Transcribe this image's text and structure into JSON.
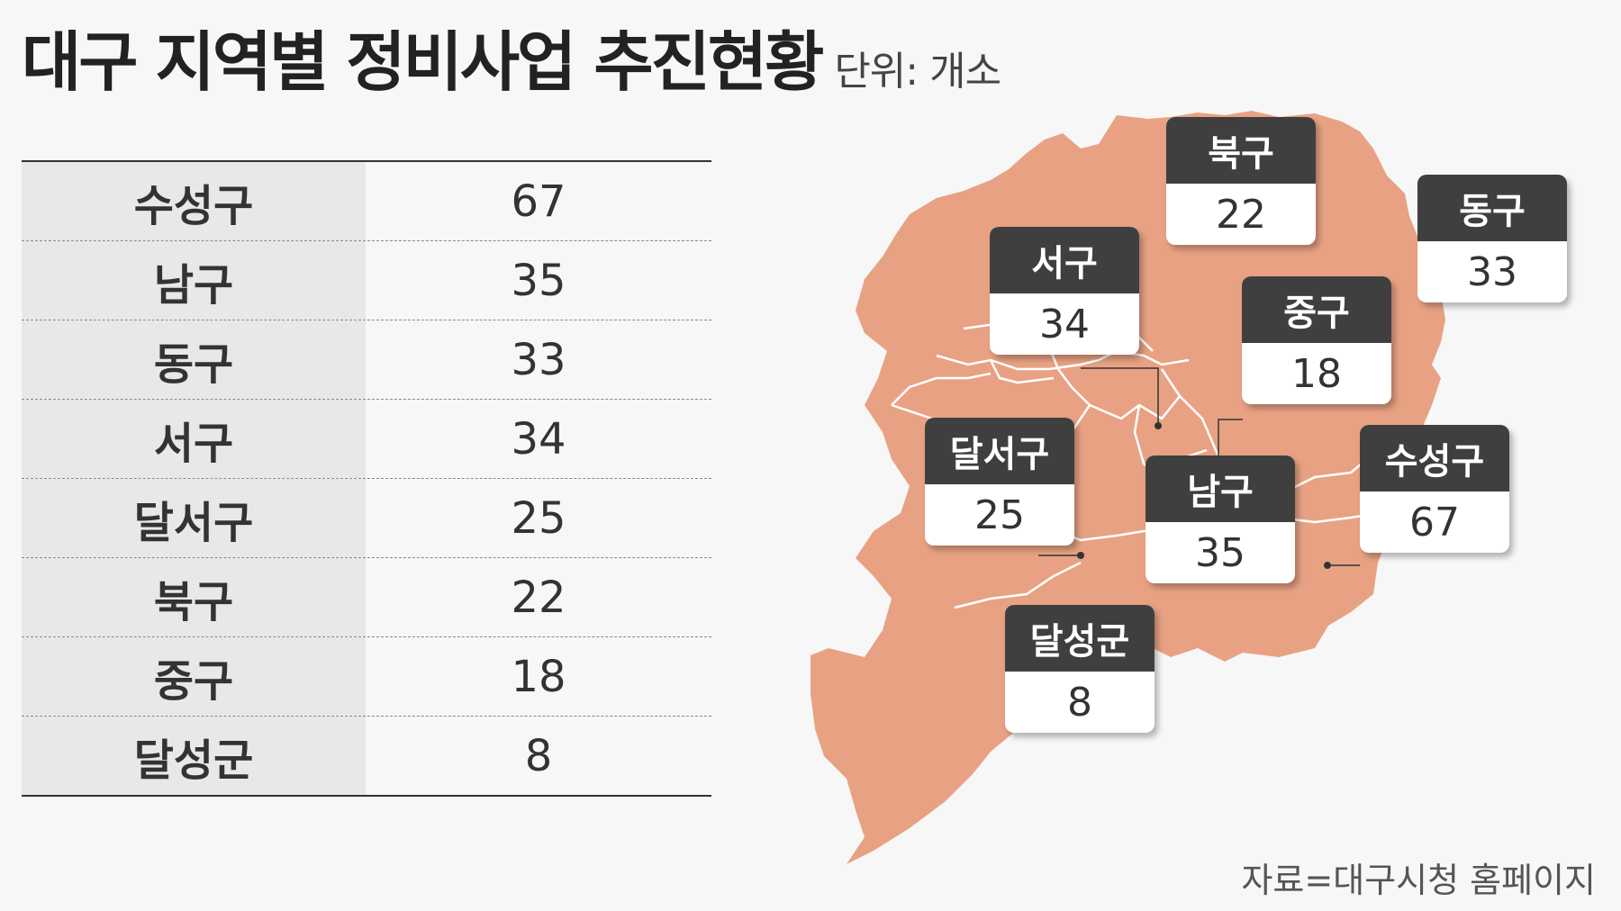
{
  "title": "대구 지역별 정비사업 추진현황",
  "unit": "단위: 개소",
  "table": [
    {
      "name": "수성구",
      "value": "67"
    },
    {
      "name": "남구",
      "value": "35"
    },
    {
      "name": "동구",
      "value": "33"
    },
    {
      "name": "서구",
      "value": "34"
    },
    {
      "name": "달서구",
      "value": "25"
    },
    {
      "name": "북구",
      "value": "22"
    },
    {
      "name": "중구",
      "value": "18"
    },
    {
      "name": "달성군",
      "value": "8"
    }
  ],
  "map_labels": {
    "bukgu": {
      "name": "북구",
      "value": "22"
    },
    "donggu": {
      "name": "동구",
      "value": "33"
    },
    "seogu": {
      "name": "서구",
      "value": "34"
    },
    "junggu": {
      "name": "중구",
      "value": "18"
    },
    "dalseogu": {
      "name": "달서구",
      "value": "25"
    },
    "namgu": {
      "name": "남구",
      "value": "35"
    },
    "suseonggu": {
      "name": "수성구",
      "value": "67"
    },
    "dalseonggun": {
      "name": "달성군",
      "value": "8"
    }
  },
  "source": "자료=대구시청 홈페이지",
  "colors": {
    "map_fill": "#e8a283",
    "label_header": "#3f3f3f"
  }
}
